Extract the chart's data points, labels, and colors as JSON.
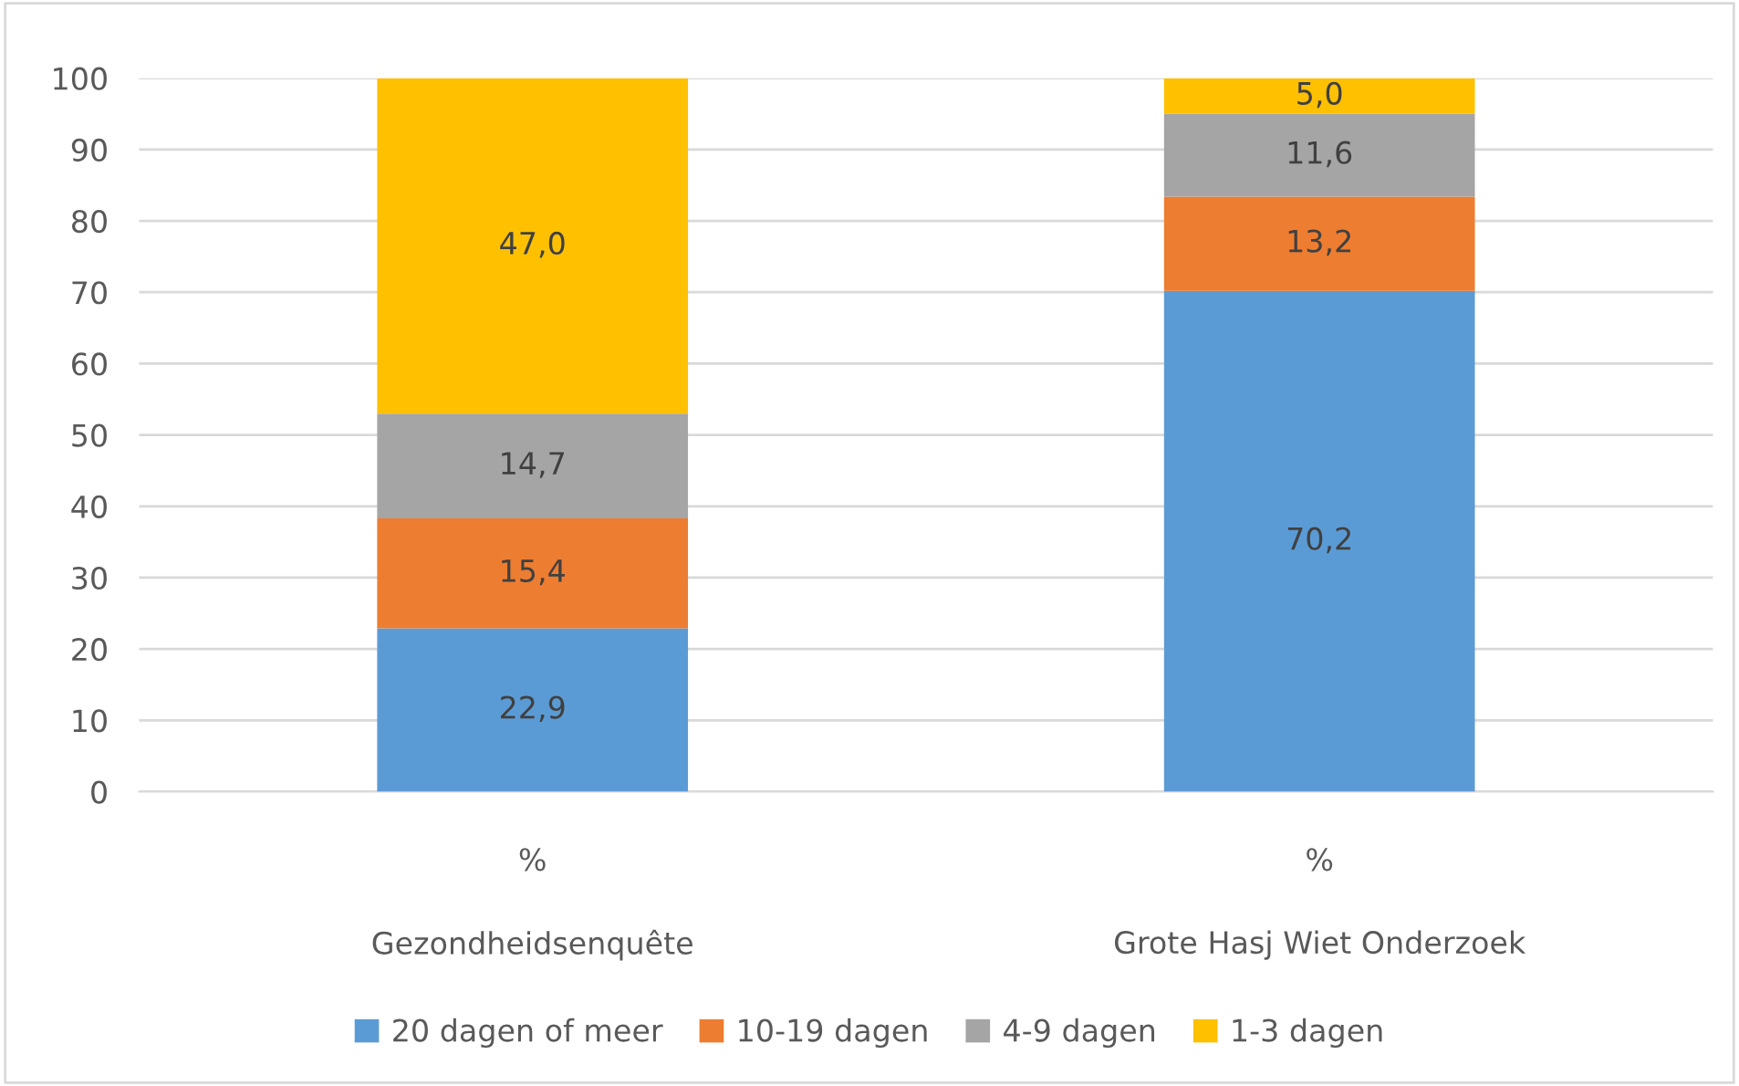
{
  "chart_data": {
    "type": "bar",
    "stacked": true,
    "categories": [
      "%",
      "%"
    ],
    "series": [
      {
        "name": "20 dagen of meer",
        "color": "#5b9bd5",
        "values": [
          22.9,
          70.2
        ],
        "value_labels": [
          "22,9",
          "70,2"
        ]
      },
      {
        "name": "10-19 dagen",
        "color": "#ed7d31",
        "values": [
          15.4,
          13.2
        ],
        "value_labels": [
          "15,4",
          "13,2"
        ]
      },
      {
        "name": "4-9 dagen",
        "color": "#a5a5a5",
        "values": [
          14.7,
          11.6
        ],
        "value_labels": [
          "14,7",
          "11,6"
        ]
      },
      {
        "name": "1-3 dagen",
        "color": "#ffc000",
        "values": [
          47.0,
          5.0
        ],
        "value_labels": [
          "47,0",
          "5,0"
        ]
      }
    ],
    "annotations": [
      "Gezondheidsenquête",
      "Grote Hasj Wiet Onderzoek"
    ],
    "ylim": [
      0,
      100
    ],
    "yticks": [
      0,
      10,
      20,
      30,
      40,
      50,
      60,
      70,
      80,
      90,
      100
    ],
    "grid": "y",
    "legend": "bottom"
  }
}
